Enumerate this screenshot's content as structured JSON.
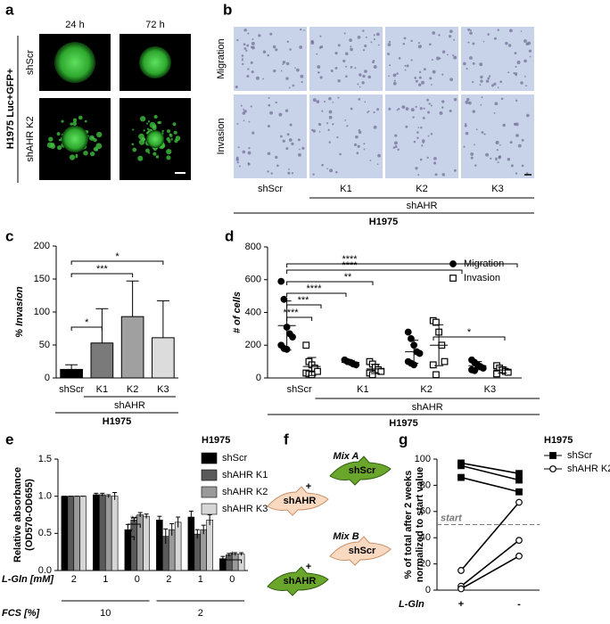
{
  "panels": {
    "a": {
      "label": "a",
      "columns": [
        "24 h",
        "72 h"
      ],
      "rows": [
        "shScr",
        "shAHR K2"
      ],
      "title": "H1975 Luc+GFP+"
    },
    "b": {
      "label": "b",
      "columns": [
        "shScr",
        "K1",
        "K2",
        "K3"
      ],
      "rows": [
        "Migration",
        "Invasion"
      ],
      "group_labels": [
        "shAHR",
        "H1975"
      ]
    },
    "f": {
      "label": "f",
      "mixes": [
        {
          "title": "Mix A",
          "top": "shScr",
          "bottom": "shAHR"
        },
        {
          "title": "Mix B",
          "top": "shScr",
          "bottom": "shAHR"
        }
      ],
      "joiner": "+"
    }
  },
  "chart_data": [
    {
      "panel": "c",
      "type": "bar",
      "y_label": "% Invasion",
      "categories": [
        "shScr",
        "K1",
        "K2",
        "K3"
      ],
      "values": [
        13,
        53,
        93,
        61
      ],
      "errors": [
        7,
        52,
        54,
        56
      ],
      "colors": [
        "#000000",
        "#7a7a7a",
        "#a0a0a0",
        "#dcdcdc"
      ],
      "ylim": [
        0,
        200
      ],
      "yticks": [
        0,
        50,
        100,
        150,
        200
      ],
      "annotations": [
        "*",
        "***",
        "*"
      ],
      "group_labels": [
        "shAHR",
        "H1975"
      ]
    },
    {
      "panel": "d",
      "type": "strip",
      "y_label": "# of cells",
      "categories": [
        "shScr",
        "K1",
        "K2",
        "K3"
      ],
      "ylim": [
        0,
        800
      ],
      "yticks": [
        0,
        200,
        400,
        600,
        800
      ],
      "legend": "right",
      "series": [
        {
          "name": "Migration",
          "marker": "circle",
          "color": "#000000",
          "values": [
            [
              590,
              480,
              310,
              270,
              250,
              200,
              180,
              175
            ],
            [
              110,
              100,
              95,
              85,
              80
            ],
            [
              280,
              240,
              200,
              160,
              150,
              100,
              90,
              80
            ],
            [
              110,
              95,
              80,
              70,
              60,
              50,
              45
            ]
          ],
          "means": [
            320,
            95,
            160,
            75
          ],
          "sd": [
            150,
            12,
            70,
            25
          ]
        },
        {
          "name": "Invasion",
          "marker": "square-open",
          "color": "#000000",
          "values": [
            [
              200,
              100,
              80,
              60,
              40,
              30,
              25,
              20
            ],
            [
              100,
              85,
              65,
              50,
              40,
              30,
              20
            ],
            [
              350,
              340,
              280,
              200,
              100,
              80,
              20
            ],
            [
              75,
              60,
              50,
              40,
              35,
              25
            ]
          ],
          "means": [
            70,
            55,
            200,
            48
          ],
          "sd": [
            55,
            28,
            125,
            18
          ]
        }
      ],
      "annotations": [
        "****",
        "****",
        "**",
        "****",
        "***",
        "****",
        "*"
      ],
      "group_labels": [
        "shAHR",
        "H1975"
      ]
    },
    {
      "panel": "e",
      "type": "bar",
      "y_label": [
        "Relative absorbance",
        "(OD570-OD655)"
      ],
      "categories": [
        "2",
        "1",
        "0",
        "2",
        "1",
        "0"
      ],
      "category_title": "L-Gln [mM]",
      "supercategories": [
        "10",
        "2"
      ],
      "supercategory_title": "FCS [%]",
      "legend_title": "H1975",
      "series": [
        {
          "name": "shScr",
          "color": "#000000",
          "values": [
            1.0,
            1.02,
            0.55,
            0.68,
            0.72,
            0.16
          ],
          "errors": [
            0,
            0.02,
            0.07,
            0.05,
            0.08,
            0.03
          ]
        },
        {
          "name": "shAHR K1",
          "color": "#5a5a5a",
          "values": [
            1.0,
            1.02,
            0.68,
            0.46,
            0.49,
            0.21
          ],
          "errors": [
            0,
            0.02,
            0.03,
            0.1,
            0.06,
            0.02
          ]
        },
        {
          "name": "shAHR K2",
          "color": "#9a9a9a",
          "values": [
            1.0,
            1.0,
            0.75,
            0.55,
            0.55,
            0.22
          ],
          "errors": [
            0,
            0.02,
            0.03,
            0.08,
            0.06,
            0.02
          ]
        },
        {
          "name": "shAHR K3",
          "color": "#d6d6d6",
          "values": [
            1.0,
            1.0,
            0.73,
            0.65,
            0.68,
            0.22
          ],
          "errors": [
            0,
            0.05,
            0.03,
            0.07,
            0.07,
            0.02
          ]
        }
      ],
      "ylim": [
        0,
        1.5
      ],
      "yticks": [
        {
          "value": 0,
          "label": "0.0"
        },
        {
          "value": 0.5,
          "label": "0.5"
        },
        {
          "value": 1,
          "label": "1.0"
        },
        {
          "value": 1.5,
          "label": "1.5"
        }
      ],
      "annotations": [
        "*",
        "**",
        "*"
      ]
    },
    {
      "panel": "g",
      "type": "line",
      "y_label": [
        "% of total after 2 weeks",
        "normalized to start value"
      ],
      "x_label": "L-Gln",
      "categories": [
        "+",
        "-"
      ],
      "legend_title": "H1975",
      "series": [
        {
          "name": "shScr",
          "marker": "square",
          "color": "#000000",
          "values": [
            [
              97,
              89
            ],
            [
              95,
              84
            ],
            [
              86,
              75
            ]
          ]
        },
        {
          "name": "shAHR K2",
          "marker": "circle-open",
          "color": "#000000",
          "values": [
            [
              15,
              67
            ],
            [
              3,
              38
            ],
            [
              1,
              26
            ]
          ]
        }
      ],
      "ylim": [
        0,
        100
      ],
      "yticks": [
        0,
        20,
        40,
        60,
        80,
        100
      ],
      "reference": {
        "value": 50,
        "label": "start"
      }
    }
  ]
}
